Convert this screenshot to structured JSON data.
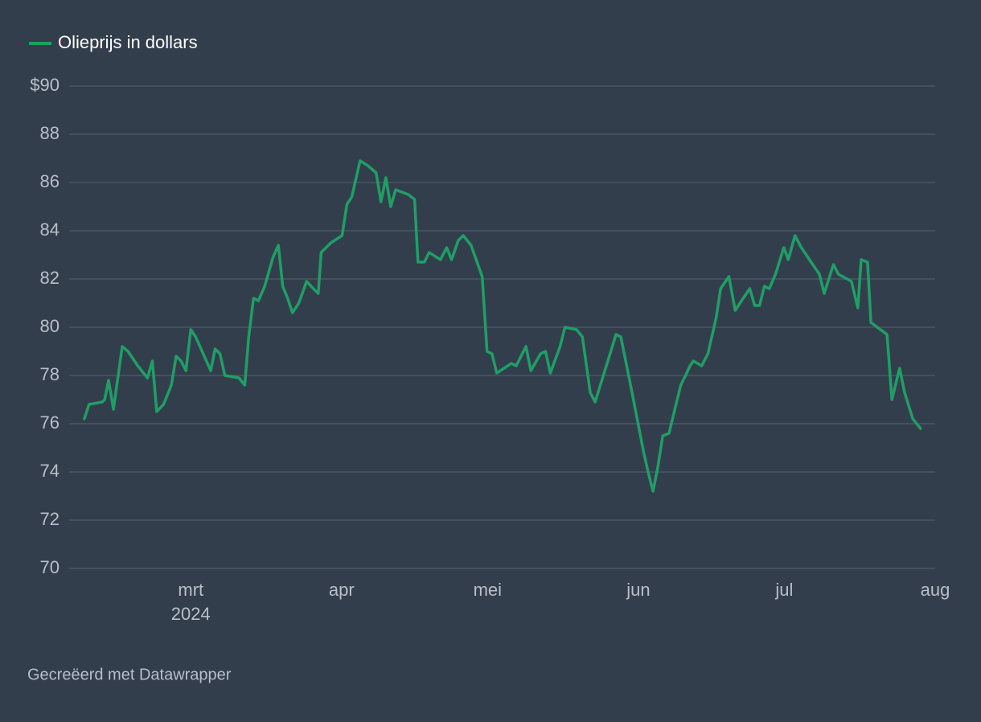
{
  "chart_data": {
    "type": "line",
    "legend": "top-left",
    "grid": true,
    "source": "Gecreëerd met Datawrapper",
    "year_label": "2024",
    "xlim": [
      36,
      214
    ],
    "xticks": [
      {
        "value": 61,
        "label": "mrt"
      },
      {
        "value": 92,
        "label": "apr"
      },
      {
        "value": 122,
        "label": "mei"
      },
      {
        "value": 153,
        "label": "jun"
      },
      {
        "value": 183,
        "label": "jul"
      },
      {
        "value": 214,
        "label": "aug"
      }
    ],
    "ylim": [
      70,
      90
    ],
    "yticks": [
      70,
      72,
      74,
      76,
      78,
      80,
      82,
      84,
      86,
      88,
      {
        "value": 90,
        "label": "$90"
      }
    ],
    "x": [
      39.1,
      40.1,
      42.8,
      43.3,
      44.1,
      45.1,
      46.9,
      48.1,
      50.1,
      52.1,
      53.1,
      54.0,
      55.4,
      57.0,
      58.0,
      59.0,
      60.0,
      61.0,
      62.0,
      64.0,
      65.1,
      66.0,
      67.0,
      68.0,
      70.9,
      72.1,
      72.9,
      73.9,
      74.9,
      76.2,
      77.9,
      79.0,
      79.9,
      80.9,
      81.9,
      83.2,
      84.8,
      86.2,
      87.2,
      87.8,
      89.8,
      92.1,
      93.1,
      94.1,
      95.8,
      97.4,
      99.1,
      100.1,
      101.1,
      102.1,
      103.1,
      105.7,
      107.0,
      107.7,
      109.0,
      110.0,
      112.3,
      113.6,
      114.6,
      116.0,
      117.0,
      118.6,
      120.9,
      121.9,
      122.9,
      123.9,
      126.9,
      127.9,
      129.9,
      130.9,
      132.9,
      133.9,
      134.9,
      136.9,
      137.9,
      140.3,
      141.5,
      143.1,
      144.1,
      146.1,
      148.4,
      149.4,
      151.4,
      154.1,
      155.0,
      156.0,
      157.0,
      158.0,
      159.3,
      161.7,
      162.7,
      163.6,
      164.3,
      166.0,
      167.3,
      169.0,
      169.9,
      171.6,
      172.9,
      174.2,
      175.9,
      176.9,
      177.9,
      178.9,
      179.9,
      181.2,
      182.9,
      183.8,
      185.2,
      186.5,
      188.5,
      190.2,
      191.2,
      193.1,
      194.1,
      196.8,
      198.1,
      198.8,
      200.1,
      200.8,
      202.1,
      204.1,
      205.1,
      206.7,
      207.7,
      209.4,
      211.0
    ],
    "series": [
      {
        "name": "Olieprijs in dollars",
        "color": "#1f9e66",
        "values": [
          76.2,
          76.8,
          76.9,
          77.0,
          77.8,
          76.6,
          79.2,
          79.0,
          78.4,
          77.9,
          78.6,
          76.5,
          76.8,
          77.6,
          78.8,
          78.6,
          78.2,
          79.9,
          79.6,
          78.7,
          78.2,
          79.1,
          78.9,
          78.0,
          77.9,
          77.6,
          79.6,
          81.2,
          81.1,
          81.7,
          82.9,
          83.4,
          81.7,
          81.2,
          80.6,
          81.0,
          81.9,
          81.6,
          81.4,
          83.1,
          83.5,
          83.8,
          85.1,
          85.4,
          86.9,
          86.7,
          86.4,
          85.2,
          86.2,
          85.0,
          85.7,
          85.5,
          85.3,
          82.7,
          82.7,
          83.1,
          82.8,
          83.3,
          82.8,
          83.6,
          83.8,
          83.4,
          82.1,
          79.0,
          78.9,
          78.1,
          78.5,
          78.4,
          79.2,
          78.2,
          78.9,
          79.0,
          78.1,
          79.2,
          80.0,
          79.9,
          79.6,
          77.3,
          76.9,
          78.2,
          79.7,
          79.6,
          77.6,
          74.8,
          74.0,
          73.2,
          74.2,
          75.5,
          75.6,
          77.6,
          78.0,
          78.4,
          78.6,
          78.4,
          78.9,
          80.4,
          81.6,
          82.1,
          80.7,
          81.1,
          81.6,
          80.9,
          80.9,
          81.7,
          81.6,
          82.2,
          83.3,
          82.8,
          83.8,
          83.3,
          82.7,
          82.2,
          81.4,
          82.6,
          82.2,
          81.9,
          80.8,
          82.8,
          82.7,
          80.2,
          80.0,
          79.7,
          77.0,
          78.3,
          77.3,
          76.2,
          75.8
        ]
      }
    ]
  }
}
